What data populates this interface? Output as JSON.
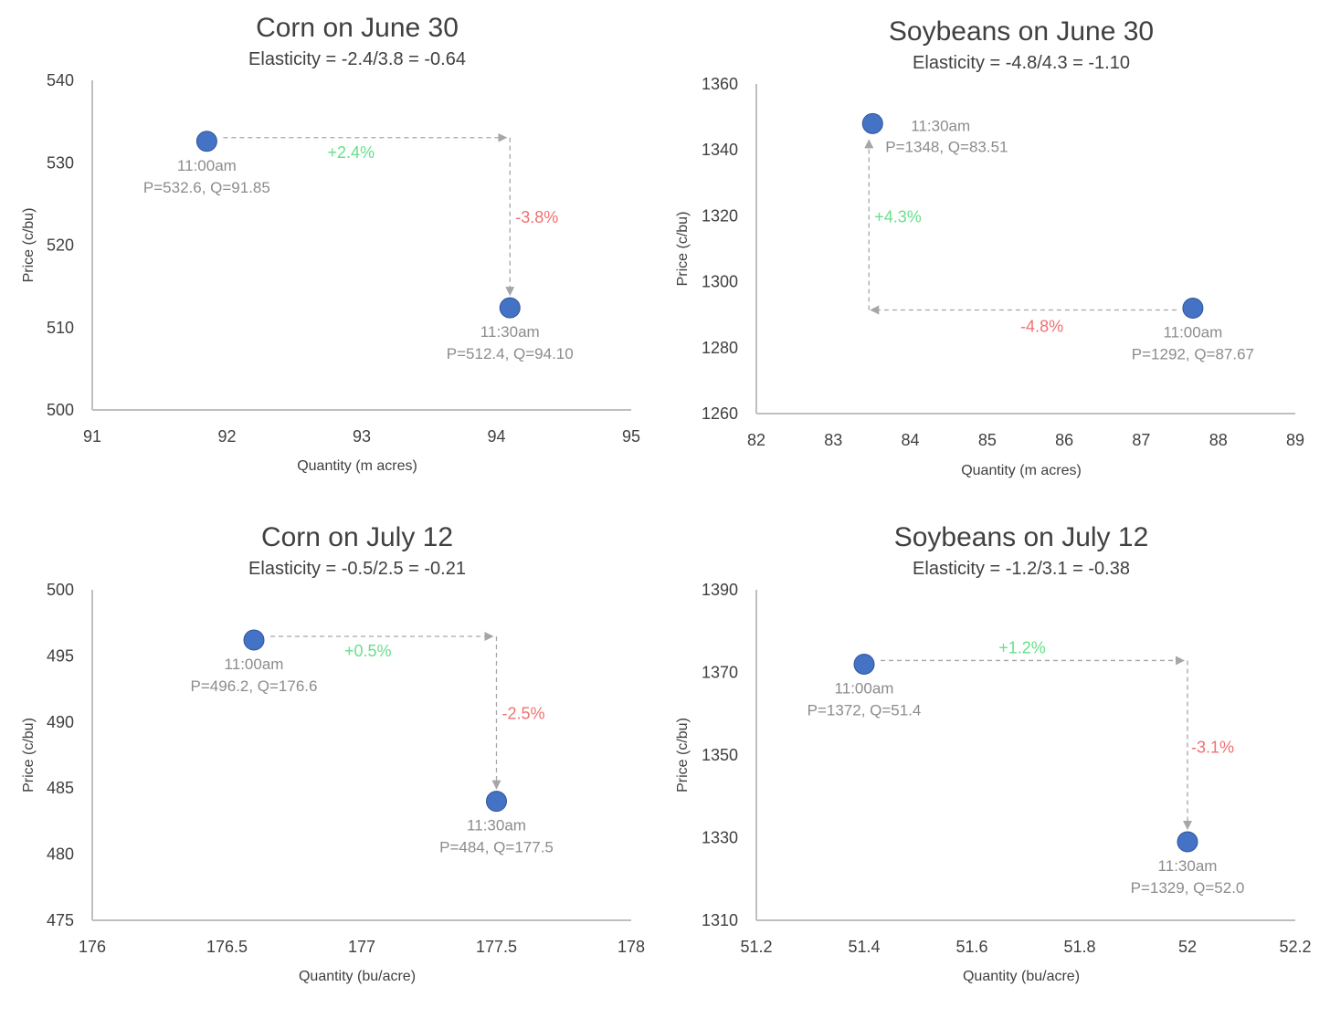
{
  "colors": {
    "point": "#4472C4",
    "point_stroke": "#2F5597",
    "axis": "#BFBFBF",
    "tick_text": "#404040",
    "title": "#404040",
    "subtitle": "#404040",
    "annotation_text": "#8C8C8C",
    "arrow": "#A6A6A6",
    "positive": "#66E08A",
    "negative": "#F07070"
  },
  "chart_data": [
    {
      "type": "scatter",
      "title": "Corn on June 30",
      "subtitle": "Elasticity = -2.4/3.8 = -0.64",
      "xlabel": "Quantity (m acres)",
      "ylabel": "Price (c/bu)",
      "xlim": [
        91,
        95
      ],
      "ylim": [
        500,
        540
      ],
      "xticks": [
        "91",
        "92",
        "93",
        "94",
        "95"
      ],
      "yticks": [
        "500",
        "510",
        "520",
        "530",
        "540"
      ],
      "points": [
        {
          "x": 91.85,
          "y": 532.6,
          "time": "11:00am",
          "label": "P=532.6, Q=91.85"
        },
        {
          "x": 94.1,
          "y": 512.4,
          "time": "11:30am",
          "label": "P=512.4, Q=94.10"
        }
      ],
      "quantity_change": "+2.4%",
      "price_change": "-3.8%"
    },
    {
      "type": "scatter",
      "title": "Soybeans on June 30",
      "subtitle": "Elasticity = -4.8/4.3 = -1.10",
      "xlabel": "Quantity (m acres)",
      "ylabel": "Price (c/bu)",
      "xlim": [
        82,
        89
      ],
      "ylim": [
        1260,
        1360
      ],
      "xticks": [
        "82",
        "83",
        "84",
        "85",
        "86",
        "87",
        "88",
        "89"
      ],
      "yticks": [
        "1260",
        "1280",
        "1300",
        "1320",
        "1340",
        "1360"
      ],
      "points": [
        {
          "x": 87.67,
          "y": 1292,
          "time": "11:00am",
          "label": "P=1292, Q=87.67"
        },
        {
          "x": 83.51,
          "y": 1348,
          "time": "11:30am",
          "label": "P=1348, Q=83.51"
        }
      ],
      "quantity_change": "-4.8%",
      "price_change": "+4.3%"
    },
    {
      "type": "scatter",
      "title": "Corn on July 12",
      "subtitle": "Elasticity = -0.5/2.5 = -0.21",
      "xlabel": "Quantity (bu/acre)",
      "ylabel": "Price (c/bu)",
      "xlim": [
        176,
        178
      ],
      "ylim": [
        475,
        500
      ],
      "xticks": [
        "176",
        "176.5",
        "177",
        "177.5",
        "178"
      ],
      "yticks": [
        "475",
        "480",
        "485",
        "490",
        "495",
        "500"
      ],
      "points": [
        {
          "x": 176.6,
          "y": 496.2,
          "time": "11:00am",
          "label": "P=496.2, Q=176.6"
        },
        {
          "x": 177.5,
          "y": 484,
          "time": "11:30am",
          "label": "P=484, Q=177.5"
        }
      ],
      "quantity_change": "+0.5%",
      "price_change": "-2.5%"
    },
    {
      "type": "scatter",
      "title": "Soybeans on July 12",
      "subtitle": "Elasticity = -1.2/3.1 = -0.38",
      "xlabel": "Quantity (bu/acre)",
      "ylabel": "Price (c/bu)",
      "xlim": [
        51.2,
        52.2
      ],
      "ylim": [
        1310,
        1390
      ],
      "xticks": [
        "51.2",
        "51.4",
        "51.6",
        "51.8",
        "52",
        "52.2"
      ],
      "yticks": [
        "1310",
        "1330",
        "1350",
        "1370",
        "1390"
      ],
      "points": [
        {
          "x": 51.4,
          "y": 1372,
          "time": "11:00am",
          "label": "P=1372, Q=51.4"
        },
        {
          "x": 52.0,
          "y": 1329,
          "time": "11:30am",
          "label": "P=1329, Q=52.0"
        }
      ],
      "quantity_change": "+1.2%",
      "price_change": "-3.1%"
    }
  ]
}
